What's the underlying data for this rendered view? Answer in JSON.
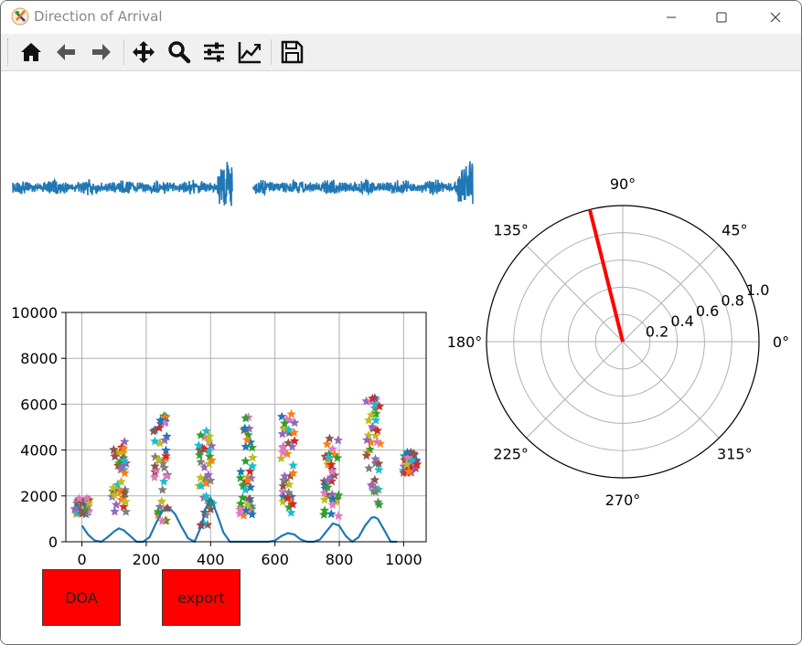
{
  "window": {
    "title": "Direction of Arrival"
  },
  "toolbar": {
    "tools": [
      {
        "name": "home-icon"
      },
      {
        "name": "back-arrow-icon"
      },
      {
        "name": "forward-arrow-icon"
      },
      {
        "name": "pan-icon"
      },
      {
        "name": "zoom-icon"
      },
      {
        "name": "configure-subplots-icon"
      },
      {
        "name": "edit-axis-icon"
      },
      {
        "name": "save-icon"
      }
    ]
  },
  "buttons": {
    "doa_label": "DOA",
    "export_label": "export"
  },
  "colors": {
    "series_blue": "#1f77b4",
    "needle_red": "#ff0000",
    "button_red": "#ff0000"
  },
  "chart_data": [
    {
      "type": "line",
      "title": "",
      "xlabel": "",
      "ylabel": "",
      "description_note": "",
      "series": [
        {
          "segments": 2,
          "values_shape": "noisy waveform with burst at end of each segment"
        }
      ]
    },
    {
      "type": "scatter",
      "title": "",
      "xlabel": "",
      "ylabel": "",
      "xlim": [
        -50,
        1070
      ],
      "ylim": [
        0,
        10000
      ],
      "grid": true,
      "xticks": [
        "0",
        "200",
        "400",
        "600",
        "800",
        "1000"
      ],
      "yticks": [
        "0",
        "2000",
        "4000",
        "6000",
        "8000",
        "10000"
      ],
      "line": {
        "x": [
          0,
          20,
          40,
          60,
          80,
          100,
          115,
          130,
          150,
          170,
          190,
          210,
          230,
          250,
          270,
          290,
          310,
          330,
          350,
          370,
          385,
          400,
          420,
          440,
          460,
          480,
          500,
          520,
          540,
          560,
          580,
          600,
          620,
          640,
          660,
          680,
          700,
          720,
          740,
          760,
          780,
          800,
          820,
          840,
          860,
          880,
          900,
          910,
          920,
          940,
          960,
          980
        ],
        "y": [
          700,
          300,
          50,
          0,
          200,
          450,
          580,
          500,
          250,
          0,
          0,
          200,
          800,
          1350,
          1500,
          1200,
          650,
          150,
          0,
          650,
          1450,
          1900,
          1200,
          400,
          0,
          0,
          0,
          0,
          0,
          0,
          0,
          50,
          250,
          380,
          320,
          100,
          0,
          0,
          100,
          450,
          800,
          700,
          250,
          0,
          200,
          700,
          1050,
          1070,
          1000,
          500,
          0,
          0
        ]
      },
      "clusters": [
        {
          "x": 0,
          "ymin": 1200,
          "ymax": 1900
        },
        {
          "x": 115,
          "ymin": 1100,
          "ymax": 4500
        },
        {
          "x": 245,
          "ymin": 900,
          "ymax": 5500
        },
        {
          "x": 385,
          "ymin": 700,
          "ymax": 5100
        },
        {
          "x": 510,
          "ymin": 1100,
          "ymax": 5500
        },
        {
          "x": 640,
          "ymin": 1200,
          "ymax": 5600
        },
        {
          "x": 775,
          "ymin": 900,
          "ymax": 4600
        },
        {
          "x": 905,
          "ymin": 1600,
          "ymax": 6300
        },
        {
          "x": 1020,
          "ymin": 3000,
          "ymax": 3900
        }
      ],
      "marker": "star",
      "palette": [
        "#1f77b4",
        "#ff7f0e",
        "#2ca02c",
        "#d62728",
        "#9467bd",
        "#8c564b",
        "#e377c2",
        "#7f7f7f",
        "#bcbd22",
        "#17becf"
      ]
    },
    {
      "type": "polar",
      "title": "",
      "angle_ticks": [
        "0°",
        "45°",
        "90°",
        "135°",
        "180°",
        "225°",
        "270°",
        "315°"
      ],
      "angle_tick_degrees": [
        0,
        45,
        90,
        135,
        180,
        225,
        270,
        315
      ],
      "radial_ticks": [
        "0.2",
        "0.4",
        "0.6",
        "0.8",
        "1.0"
      ],
      "radial_tick_values": [
        0.2,
        0.4,
        0.6,
        0.8,
        1.0
      ],
      "rlim": [
        0,
        1.0
      ],
      "needle": {
        "angle_deg": 104,
        "radius": 1.0,
        "color": "#ff0000"
      }
    }
  ]
}
